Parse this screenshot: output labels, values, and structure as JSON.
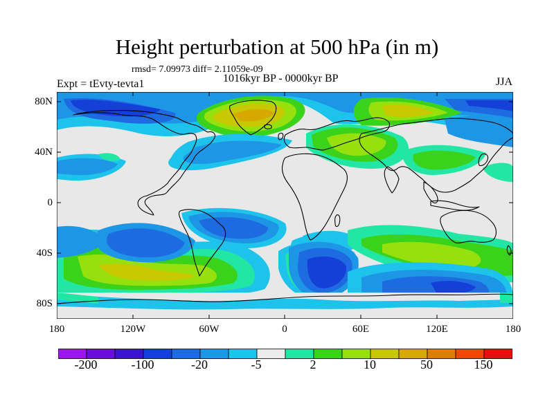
{
  "title": "Height perturbation at 500 hPa (in m)",
  "stats": "rmsd= 7.09973  diff= 2.11059e-09",
  "subtitle": "1016kyr BP - 0000kyr BP",
  "left_label": "Expt = tEvty-tevta1",
  "right_label": "JJA",
  "map": {
    "lat_ticks": [
      "80N",
      "40N",
      "0",
      "40S",
      "80S"
    ],
    "lon_ticks": [
      "180",
      "120W",
      "60W",
      "0",
      "60E",
      "120E",
      "180"
    ],
    "ocean_color": "#e8e8e8"
  },
  "colorbar": {
    "colors": [
      "#9a18e6",
      "#6a10d6",
      "#3a14c8",
      "#1440d8",
      "#1e6ae0",
      "#1e96e6",
      "#1ec3ec",
      "#ececec",
      "#22e6a4",
      "#3ad21a",
      "#96e00e",
      "#c8c800",
      "#d6a800",
      "#de7e00",
      "#e84a00",
      "#e80e0e"
    ],
    "labels": [
      "-200",
      "-100",
      "-20",
      "-5",
      "2",
      "10",
      "50",
      "150"
    ]
  }
}
